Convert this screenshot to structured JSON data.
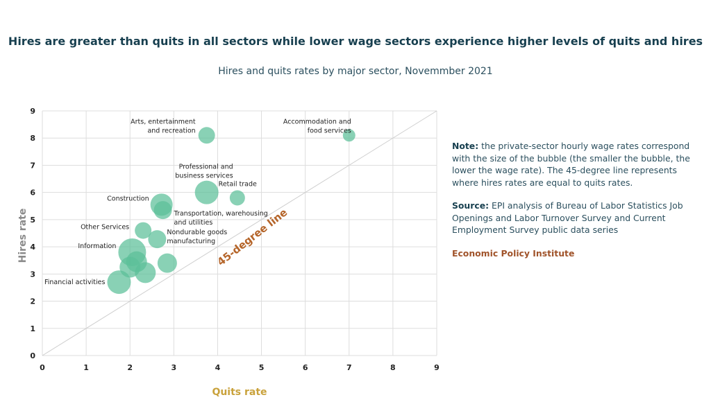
{
  "title": "Hires are greater than quits in all sectors while lower wage sectors experience higher levels of quits and hires",
  "subtitle": "Hires and quits rates by major sector, Novemmber 2021",
  "note": {
    "note_label": "Note:",
    "note_text": " the private-sector hourly wage rates correspond with the size of the bubble (the smaller the bubble, the lower the wage rate). The 45-degree line represents where hires rates are equal to quits rates.",
    "source_label": "Source:",
    "source_text": " EPI analysis of Bureau of Labor Statistics Job Openings and Labor Turnover Survey and Current Employment Survey public data series",
    "org": "Economic Policy Institute"
  },
  "chart_data": {
    "type": "scatter",
    "subtype": "bubble",
    "xlabel": "Quits rate",
    "ylabel": "Hires rate",
    "xlim": [
      0,
      9
    ],
    "ylim": [
      0,
      9
    ],
    "xticks": [
      "0",
      "1",
      "2",
      "3",
      "4",
      "5",
      "6",
      "7",
      "8",
      "9"
    ],
    "yticks": [
      "0",
      "1",
      "2",
      "3",
      "4",
      "5",
      "6",
      "7",
      "8",
      "9"
    ],
    "grid": true,
    "reference_line": {
      "label": "45-degree line",
      "slope": 1,
      "intercept": 0
    },
    "bubble_color": "#5cbf98",
    "points": [
      {
        "label": "Arts, entertainment|and recreation",
        "x": 3.75,
        "y": 8.1,
        "relative_size": 12
      },
      {
        "label": "Accommodation and|food services",
        "x": 7.0,
        "y": 8.1,
        "relative_size": 9
      },
      {
        "label": "Professional and|business services",
        "x": 3.75,
        "y": 6.0,
        "relative_size": 17
      },
      {
        "label": "Retail trade",
        "x": 4.45,
        "y": 5.8,
        "relative_size": 11
      },
      {
        "label": "Construction",
        "x": 2.72,
        "y": 5.55,
        "relative_size": 16
      },
      {
        "label": "Transportation, warehousing|and utilities",
        "x": 2.75,
        "y": 5.35,
        "relative_size": 13
      },
      {
        "label": "Other Services",
        "x": 2.3,
        "y": 4.6,
        "relative_size": 12
      },
      {
        "label": "Nondurable goods|manufacturing",
        "x": 2.62,
        "y": 4.28,
        "relative_size": 13
      },
      {
        "label": "Information",
        "x": 2.05,
        "y": 3.8,
        "relative_size": 20
      },
      {
        "label": "",
        "x": 2.15,
        "y": 3.45,
        "relative_size": 15
      },
      {
        "label": "",
        "x": 2.0,
        "y": 3.25,
        "relative_size": 15
      },
      {
        "label": "",
        "x": 2.35,
        "y": 3.05,
        "relative_size": 15
      },
      {
        "label": "",
        "x": 2.85,
        "y": 3.4,
        "relative_size": 14
      },
      {
        "label": "Financial activities",
        "x": 1.75,
        "y": 2.7,
        "relative_size": 17
      }
    ]
  }
}
